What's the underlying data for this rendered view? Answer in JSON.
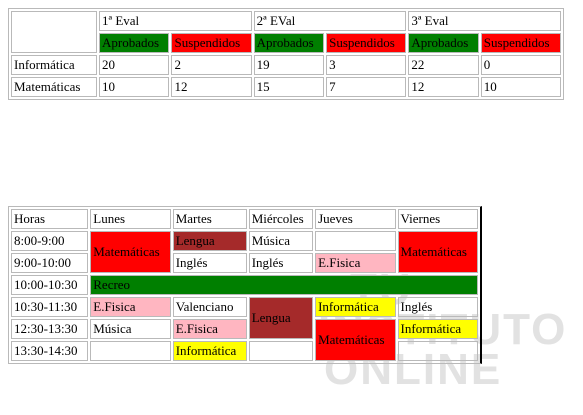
{
  "grades": {
    "evals": [
      "1ª Eval",
      "2ª EVal",
      "3ª Eval"
    ],
    "status": {
      "approved": "Aprobados",
      "failed": "Suspendidos"
    },
    "rows": [
      {
        "subject": "Informática",
        "values": [
          "20",
          "2",
          "19",
          "3",
          "22",
          "0"
        ]
      },
      {
        "subject": "Matemáticas",
        "values": [
          "10",
          "12",
          "15",
          "7",
          "12",
          "10"
        ]
      }
    ]
  },
  "schedule": {
    "header": [
      "Horas",
      "Lunes",
      "Martes",
      "Miércoles",
      "Jueves",
      "Viernes"
    ],
    "times": [
      "8:00-9:00",
      "9:00-10:00",
      "10:00-10:30",
      "10:30-11:30",
      "12:30-13:30",
      "13:30-14:30"
    ],
    "cells": {
      "mon_math": "Matemáticas",
      "tue_lengua": "Lengua",
      "wed_musica": "Música",
      "fri_math": "Matemáticas",
      "tue_ingles": "Inglés",
      "wed_ingles": "Inglés",
      "thu_efisica": "E.Fisica",
      "recreo": "Recreo",
      "mon_efisica": "E.Fisica",
      "tue_valenciano": "Valenciano",
      "wed_lengua": "Lengua",
      "thu_informatica": "Informática",
      "fri_ingles": "Inglés",
      "mon_musica": "Música",
      "tue_efisica": "E.Fisica",
      "thu_math": "Matemáticas",
      "fri_informatica": "Informática",
      "tue_informatica": "Informática"
    }
  },
  "watermark": {
    "line1": "TU",
    "line2": "INSTITUTO",
    "line3": "ONLINE"
  },
  "colors": {
    "green": "#007f00",
    "red": "#ff0000",
    "brown": "#a52a2a",
    "pink": "#ffb6c1",
    "yellow": "#ffff00"
  }
}
